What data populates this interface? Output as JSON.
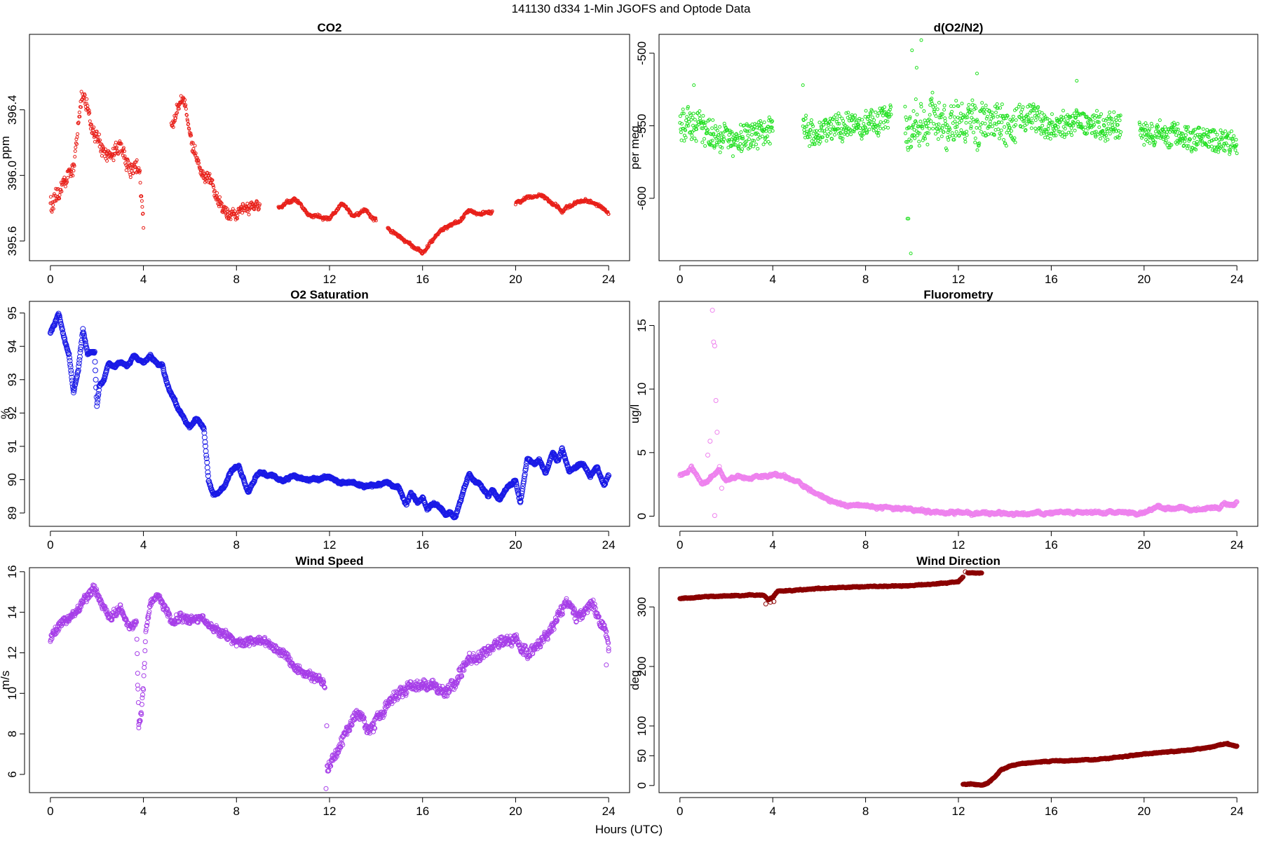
{
  "figure": {
    "title": "141130   d334   1-Min  JGOFS and Optode Data",
    "xlabel": "Hours (UTC)"
  },
  "chart_data": [
    {
      "type": "scatter",
      "title": "CO2",
      "ylabel": "ppm",
      "xlim": [
        -0.9,
        24.9
      ],
      "ylim": [
        395.48,
        396.86
      ],
      "xticks": [
        0,
        4,
        8,
        12,
        16,
        20,
        24
      ],
      "yticks": [
        395.6,
        396.0,
        396.4
      ],
      "ytick_labels": [
        "395.6",
        "396.0",
        "396.4"
      ],
      "color": "#e8201a",
      "marker_size": 2,
      "noise_fraction": 0.4,
      "segments": [
        {
          "x": [
            0,
            0.3,
            0.6,
            1.0,
            1.2,
            1.35,
            1.55,
            1.8,
            2.2,
            2.6,
            3.0,
            3.2,
            3.5,
            3.8,
            4.0
          ],
          "y": [
            395.83,
            395.85,
            395.95,
            396.05,
            396.3,
            396.5,
            396.45,
            396.3,
            396.15,
            396.1,
            396.2,
            396.1,
            396.0,
            396.1,
            395.72
          ],
          "spread": 0.1
        },
        {
          "x": [
            5.2,
            5.5,
            5.8,
            6.1,
            6.5,
            7.0,
            7.3,
            7.6,
            8.0,
            8.5,
            9.0
          ],
          "y": [
            396.3,
            396.4,
            396.45,
            396.2,
            396.05,
            395.95,
            395.85,
            395.78,
            395.76,
            395.8,
            395.79
          ],
          "spread": 0.07
        },
        {
          "x": [
            9.8,
            10.5,
            11.0,
            11.5,
            12.0,
            12.5,
            13.0,
            13.5,
            14.0
          ],
          "y": [
            395.8,
            395.86,
            395.78,
            395.75,
            395.73,
            395.82,
            395.75,
            395.79,
            395.73
          ],
          "spread": 0.02
        },
        {
          "x": [
            14.5,
            15.0,
            15.5,
            16.0,
            16.4,
            16.8,
            17.2,
            17.6,
            18.0,
            18.5,
            19.0
          ],
          "y": [
            395.68,
            395.63,
            395.57,
            395.53,
            395.6,
            395.66,
            395.7,
            395.72,
            395.78,
            395.77,
            395.78
          ],
          "spread": 0.02
        },
        {
          "x": [
            20.0,
            20.5,
            21.0,
            21.5,
            22.0,
            22.5,
            23.0,
            23.5,
            24.0
          ],
          "y": [
            395.83,
            395.86,
            395.88,
            395.84,
            395.78,
            395.83,
            395.85,
            395.82,
            395.77
          ],
          "spread": 0.02
        }
      ]
    },
    {
      "type": "scatter",
      "title": "d(O2/N2)",
      "ylabel": "per meg",
      "xlim": [
        -0.9,
        24.9
      ],
      "ylim": [
        -643,
        -487
      ],
      "xticks": [
        0,
        4,
        8,
        12,
        16,
        20,
        24
      ],
      "yticks": [
        -600,
        -550,
        -500
      ],
      "ytick_labels": [
        "-600",
        "-550",
        "-500"
      ],
      "color": "#22e022",
      "marker_size": 2,
      "noise_fraction": 0.6,
      "segments": [
        {
          "x": [
            0,
            1,
            2,
            3,
            4
          ],
          "y": [
            -548,
            -553,
            -558,
            -557,
            -552
          ],
          "spread": 16
        },
        {
          "x": [
            5.3,
            6.5,
            7.5,
            8.5,
            9.1
          ],
          "y": [
            -552,
            -553,
            -549,
            -547,
            -545
          ],
          "spread": 14
        },
        {
          "x": [
            9.7,
            11,
            12.5,
            14,
            14.5
          ],
          "y": [
            -548,
            -547,
            -548,
            -547,
            -546
          ],
          "spread": 22
        },
        {
          "x": [
            14.6,
            16,
            17.5,
            19
          ],
          "y": [
            -545,
            -548,
            -550,
            -552
          ],
          "spread": 14
        },
        {
          "x": [
            19.8,
            21,
            22.5,
            24
          ],
          "y": [
            -553,
            -556,
            -558,
            -563
          ],
          "spread": 12
        }
      ],
      "outliers": {
        "x": [
          9.8,
          9.85,
          9.95,
          10.0,
          10.4,
          10.2,
          12.8,
          17.1,
          0.6,
          5.3
        ],
        "y": [
          -614,
          -614,
          -638,
          -498,
          -491,
          -510,
          -514,
          -519,
          -522,
          -522
        ]
      }
    },
    {
      "type": "scatter",
      "title": "O2 Saturation",
      "ylabel": "%",
      "xlim": [
        -0.9,
        24.9
      ],
      "ylim": [
        88.6,
        95.35
      ],
      "xticks": [
        0,
        4,
        8,
        12,
        16,
        20,
        24
      ],
      "yticks": [
        89,
        90,
        91,
        92,
        93,
        94,
        95
      ],
      "ytick_labels": [
        "89",
        "90",
        "91",
        "92",
        "93",
        "94",
        "95"
      ],
      "color": "#1a1ae6",
      "marker_size": 3.5,
      "noise_fraction": 0.3,
      "segments": [
        {
          "x": [
            0,
            0.2,
            0.35,
            0.6,
            0.8,
            1.0,
            1.2,
            1.4,
            1.6,
            1.9,
            2.0,
            2.1,
            2.3,
            2.5,
            2.8,
            3.0,
            3.3,
            3.6,
            4.0,
            4.3,
            4.6,
            4.8,
            5.0,
            5.2,
            5.5,
            5.8,
            6.0,
            6.3,
            6.6,
            6.8,
            7.0,
            7.2,
            7.5,
            7.8,
            8.1,
            8.5,
            8.8,
            9.0,
            9.5,
            10.0,
            10.5,
            11.0,
            11.5,
            12.0,
            12.5,
            13.0,
            13.5,
            14.0,
            14.5,
            15.0,
            15.3,
            15.5,
            15.8,
            16.0,
            16.2,
            16.5,
            16.8,
            17.0,
            17.2,
            17.4,
            17.7,
            18.0,
            18.2,
            18.5,
            18.8,
            19.0,
            19.3,
            19.6,
            20.0,
            20.2,
            20.5,
            20.8,
            21.0,
            21.3,
            21.6,
            21.8,
            22.0,
            22.3,
            22.6,
            22.9,
            23.2,
            23.5,
            23.8,
            24.0
          ],
          "y": [
            94.4,
            94.7,
            95.0,
            94.2,
            93.7,
            92.6,
            93.3,
            94.5,
            93.8,
            93.8,
            92.2,
            92.8,
            93.0,
            93.5,
            93.4,
            93.5,
            93.4,
            93.7,
            93.5,
            93.7,
            93.4,
            93.5,
            92.9,
            92.6,
            92.1,
            91.8,
            91.6,
            91.8,
            91.5,
            90.0,
            89.6,
            89.6,
            89.8,
            90.3,
            90.4,
            89.6,
            90.1,
            90.2,
            90.1,
            90.0,
            90.1,
            90.0,
            90.0,
            90.1,
            89.9,
            89.9,
            89.8,
            89.8,
            89.9,
            89.7,
            89.2,
            89.6,
            89.3,
            89.5,
            89.1,
            89.3,
            89.1,
            88.9,
            89.0,
            88.9,
            89.5,
            90.2,
            90.0,
            89.8,
            89.5,
            89.7,
            89.4,
            89.7,
            90.0,
            89.3,
            90.6,
            90.5,
            90.6,
            90.2,
            90.8,
            90.5,
            90.9,
            90.3,
            90.4,
            90.5,
            90.1,
            90.4,
            89.8,
            90.1
          ],
          "spread": 0.08
        }
      ]
    },
    {
      "type": "scatter",
      "title": "Fluorometry",
      "ylabel": "ug/l",
      "xlim": [
        -0.9,
        24.9
      ],
      "ylim": [
        -0.8,
        16.9
      ],
      "xticks": [
        0,
        4,
        8,
        12,
        16,
        20,
        24
      ],
      "yticks": [
        0,
        5,
        10,
        15
      ],
      "ytick_labels": [
        "0",
        "5",
        "10",
        "15"
      ],
      "color": "#ee82ee",
      "marker_size": 3,
      "noise_fraction": 0.3,
      "segments": [
        {
          "x": [
            0,
            0.3,
            0.5,
            0.8,
            1.0,
            1.2,
            1.5,
            1.7,
            2.0,
            2.5,
            3.0,
            3.5,
            4.0,
            4.5,
            5.0,
            5.5,
            6.0,
            6.5,
            7.0,
            8.0,
            9.0,
            10.0,
            11.0,
            12.0,
            13.0,
            14.0,
            15.0,
            16.0,
            17.0,
            18.0,
            19.0,
            20.0,
            20.5,
            21.0,
            22.0,
            23.0,
            23.5,
            24.0
          ],
          "y": [
            3.2,
            3.4,
            3.8,
            3.0,
            2.5,
            2.8,
            3.3,
            3.6,
            2.9,
            3.1,
            3.0,
            3.1,
            3.2,
            3.1,
            2.8,
            2.2,
            1.6,
            1.2,
            0.9,
            0.7,
            0.8,
            0.5,
            0.4,
            0.3,
            0.25,
            0.2,
            0.2,
            0.25,
            0.25,
            0.25,
            0.3,
            0.35,
            0.7,
            0.6,
            0.5,
            0.6,
            0.9,
            1.1
          ],
          "spread": 0.25
        }
      ],
      "outliers": {
        "x": [
          1.4,
          1.45,
          1.5,
          1.55,
          1.6,
          1.3,
          1.5,
          1.7,
          1.8,
          1.2
        ],
        "y": [
          16.2,
          13.7,
          13.4,
          9.1,
          6.6,
          5.9,
          0.05,
          3.9,
          2.2,
          4.8
        ]
      }
    },
    {
      "type": "scatter",
      "title": "Wind Speed",
      "ylabel": "m/s",
      "xlim": [
        -0.9,
        24.9
      ],
      "ylim": [
        5.1,
        16.2
      ],
      "xticks": [
        0,
        4,
        8,
        12,
        16,
        20,
        24
      ],
      "yticks": [
        6,
        8,
        10,
        12,
        14,
        16
      ],
      "ytick_labels": [
        "6",
        "8",
        "10",
        "12",
        "14",
        "16"
      ],
      "color": "#a63ee8",
      "marker_size": 3,
      "noise_fraction": 0.5,
      "segments": [
        {
          "x": [
            0,
            0.5,
            1.0,
            1.5,
            1.9,
            2.2,
            2.6,
            3.0,
            3.4,
            3.7,
            3.8,
            3.9,
            4.0,
            4.1,
            4.3,
            4.6,
            5.0,
            5.3,
            5.6,
            6.0,
            6.5,
            7.0,
            7.5,
            8.0,
            8.5,
            9.0,
            9.5,
            10.0,
            10.5,
            11.0,
            11.5,
            11.8
          ],
          "y": [
            12.6,
            13.5,
            14.0,
            14.6,
            15.3,
            14.3,
            13.8,
            14.1,
            13.2,
            13.5,
            8.5,
            9.0,
            10.3,
            13.0,
            14.4,
            14.8,
            14.0,
            13.4,
            13.8,
            13.6,
            13.8,
            13.2,
            13.0,
            12.5,
            12.6,
            12.6,
            12.3,
            11.9,
            11.3,
            11.0,
            10.8,
            10.4
          ],
          "spread": 0.35
        },
        {
          "x": [
            11.9,
            12.2,
            12.5,
            12.8,
            13.1,
            13.4,
            13.7,
            14.0,
            14.5,
            15.0,
            15.5,
            16.0,
            16.5,
            17.0,
            17.5,
            18.0,
            18.5,
            19.0,
            19.5,
            20.0,
            20.5,
            21.0,
            21.5,
            22.0,
            22.3,
            22.6,
            23.0,
            23.3,
            23.6,
            23.8,
            24.0
          ],
          "y": [
            6.2,
            6.8,
            7.5,
            8.3,
            8.9,
            8.7,
            7.9,
            8.6,
            9.6,
            10.1,
            10.4,
            10.4,
            10.3,
            9.9,
            10.8,
            11.6,
            12.0,
            12.3,
            12.5,
            12.5,
            12.0,
            12.3,
            13.0,
            14.2,
            14.5,
            13.8,
            14.0,
            14.5,
            13.6,
            13.3,
            12.4
          ],
          "spread": 0.45
        }
      ],
      "outliers": {
        "x": [
          11.85,
          11.88,
          3.75,
          3.8,
          23.9,
          24.0
        ],
        "y": [
          5.3,
          8.4,
          10.4,
          8.3,
          11.4,
          12.1
        ]
      }
    },
    {
      "type": "scatter",
      "title": "Wind Direction",
      "ylabel": "deg",
      "xlim": [
        -0.9,
        24.9
      ],
      "ylim": [
        -12,
        366
      ],
      "xticks": [
        0,
        4,
        8,
        12,
        16,
        20,
        24
      ],
      "yticks": [
        0,
        50,
        100,
        200,
        300
      ],
      "ytick_labels": [
        "0",
        "50",
        "100",
        "200",
        "300"
      ],
      "color": "#8b0000",
      "marker_size": 3,
      "noise_fraction": 0.4,
      "segments": [
        {
          "x": [
            0,
            1.0,
            2.0,
            3.0,
            3.6,
            3.8,
            4.0,
            4.2,
            5.0,
            6.0,
            7.0,
            8.0,
            9.0,
            10.0,
            11.0,
            11.5,
            12.0,
            12.2
          ],
          "y": [
            314,
            317,
            318,
            320,
            320,
            313,
            316,
            326,
            328,
            331,
            333,
            334,
            335,
            336,
            339,
            340,
            343,
            350
          ],
          "spread": 1.5
        },
        {
          "x": [
            12.4,
            12.7,
            13.0
          ],
          "y": [
            357,
            357,
            357
          ],
          "spread": 1
        },
        {
          "x": [
            12.2,
            12.6,
            13.0,
            13.3,
            13.6,
            13.8,
            14.2,
            14.6,
            15.0,
            16.0,
            17.0,
            18.0,
            19.0,
            20.0,
            21.0,
            22.0,
            22.5,
            23.0,
            23.5,
            24.0
          ],
          "y": [
            2,
            3,
            0,
            5,
            15,
            25,
            32,
            36,
            38,
            41,
            42,
            44,
            48,
            53,
            56,
            60,
            62,
            66,
            70,
            66
          ],
          "spread": 1.5
        }
      ],
      "outliers": {
        "x": [
          3.7,
          3.9,
          4.05,
          12.3,
          13.1,
          23.6
        ],
        "y": [
          305,
          308,
          309,
          359,
          2,
          71
        ]
      }
    }
  ]
}
